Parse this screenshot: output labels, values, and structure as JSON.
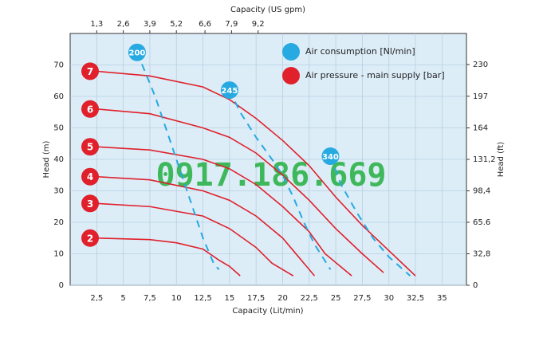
{
  "chart_data": {
    "type": "line",
    "title_top": "Capacity  (US gpm)",
    "xlabel": "Capacity  (Lit/min)",
    "ylabel": "Head  (m)",
    "y2label": "Head  (ft)",
    "watermark": "0917.186.669",
    "xlim": [
      0,
      37.3
    ],
    "xticks": [
      {
        "value": 2.5,
        "label": "2,5"
      },
      5,
      {
        "value": 7.5,
        "label": "7,5"
      },
      10,
      {
        "value": 12.5,
        "label": "12,5"
      },
      15,
      {
        "value": 17.5,
        "label": "17,5"
      },
      20,
      {
        "value": 22.5,
        "label": "22,5"
      },
      25,
      {
        "value": 27.5,
        "label": "27,5"
      },
      30,
      {
        "value": 32.5,
        "label": "32,5"
      },
      35
    ],
    "x2lim": [
      0,
      19.4
    ],
    "x2ticks": [
      {
        "value": 1.3,
        "label": "1,3"
      },
      {
        "value": 2.6,
        "label": "2,6"
      },
      {
        "value": 3.9,
        "label": "3,9"
      },
      {
        "value": 5.2,
        "label": "5,2"
      },
      {
        "value": 6.6,
        "label": "6,6"
      },
      {
        "value": 7.9,
        "label": "7,9"
      },
      {
        "value": 9.2,
        "label": "9,2"
      }
    ],
    "ylim": [
      0,
      80
    ],
    "yticks": [
      0,
      10,
      20,
      30,
      40,
      50,
      60,
      70
    ],
    "y2lim": [
      0,
      262.4
    ],
    "y2ticks": [
      0,
      {
        "value": 32.8,
        "label": "32,8"
      },
      65.6,
      {
        "value": 98.4,
        "label": "98,4"
      },
      {
        "value": 131.2,
        "label": "131,2"
      },
      164,
      197,
      230
    ],
    "grid": true,
    "legend": [
      {
        "label": "Air consumption  [Nl/min]",
        "color": "#27a9e1"
      },
      {
        "label": "Air pressure  - main supply  [bar]",
        "color": "#e0202a"
      }
    ],
    "series": [
      {
        "name": "7",
        "color": "#e0202a",
        "style": "solid",
        "x": [
          2.5,
          7.5,
          12.5,
          15,
          17.5,
          20,
          22.5,
          25,
          27.5,
          30,
          32.5
        ],
        "values": [
          68,
          66.5,
          63,
          59,
          53,
          46,
          38,
          28,
          19,
          11,
          3
        ]
      },
      {
        "name": "6",
        "color": "#e0202a",
        "style": "solid",
        "x": [
          2.5,
          7.5,
          12.5,
          15,
          17.5,
          20,
          22.5,
          25,
          27.5,
          29.5
        ],
        "values": [
          56,
          54.5,
          50,
          47,
          42,
          35,
          27,
          18,
          10,
          4
        ]
      },
      {
        "name": "5",
        "color": "#e0202a",
        "style": "solid",
        "x": [
          2.5,
          7.5,
          12.5,
          15,
          17.5,
          20,
          22.5,
          24,
          26.5
        ],
        "values": [
          44,
          43,
          40,
          37,
          32,
          25,
          17,
          10,
          3
        ]
      },
      {
        "name": "4",
        "color": "#e0202a",
        "style": "solid",
        "x": [
          2.5,
          7.5,
          12.5,
          15,
          17.5,
          20,
          21.5,
          23
        ],
        "values": [
          34.5,
          33.5,
          30,
          27,
          22,
          15,
          9,
          3
        ]
      },
      {
        "name": "3",
        "color": "#e0202a",
        "style": "solid",
        "x": [
          2.5,
          7.5,
          12.5,
          15,
          17.5,
          19,
          21
        ],
        "values": [
          26,
          25,
          22,
          18,
          12,
          7,
          3
        ]
      },
      {
        "name": "2",
        "color": "#e0202a",
        "style": "solid",
        "x": [
          2.5,
          7.5,
          10,
          12.5,
          14,
          15,
          16
        ],
        "values": [
          15,
          14.5,
          13.5,
          11.5,
          8,
          6,
          3
        ]
      },
      {
        "name": "200",
        "color": "#27a9e1",
        "style": "dashed",
        "x": [
          6.3,
          8,
          9,
          10.5,
          11.5,
          12.5,
          13.5,
          14
        ],
        "values": [
          74,
          60,
          50,
          35,
          25,
          15,
          7,
          5
        ]
      },
      {
        "name": "245",
        "color": "#27a9e1",
        "style": "dashed",
        "x": [
          15,
          16,
          17.5,
          19,
          20,
          21,
          22,
          23,
          24.5
        ],
        "values": [
          62,
          55,
          47,
          40,
          35,
          28,
          20,
          13,
          5
        ]
      },
      {
        "name": "340",
        "color": "#27a9e1",
        "style": "dashed",
        "x": [
          24.5,
          25.5,
          27,
          28.5,
          30,
          32
        ],
        "values": [
          41,
          32,
          23,
          15,
          9,
          3
        ]
      }
    ]
  }
}
